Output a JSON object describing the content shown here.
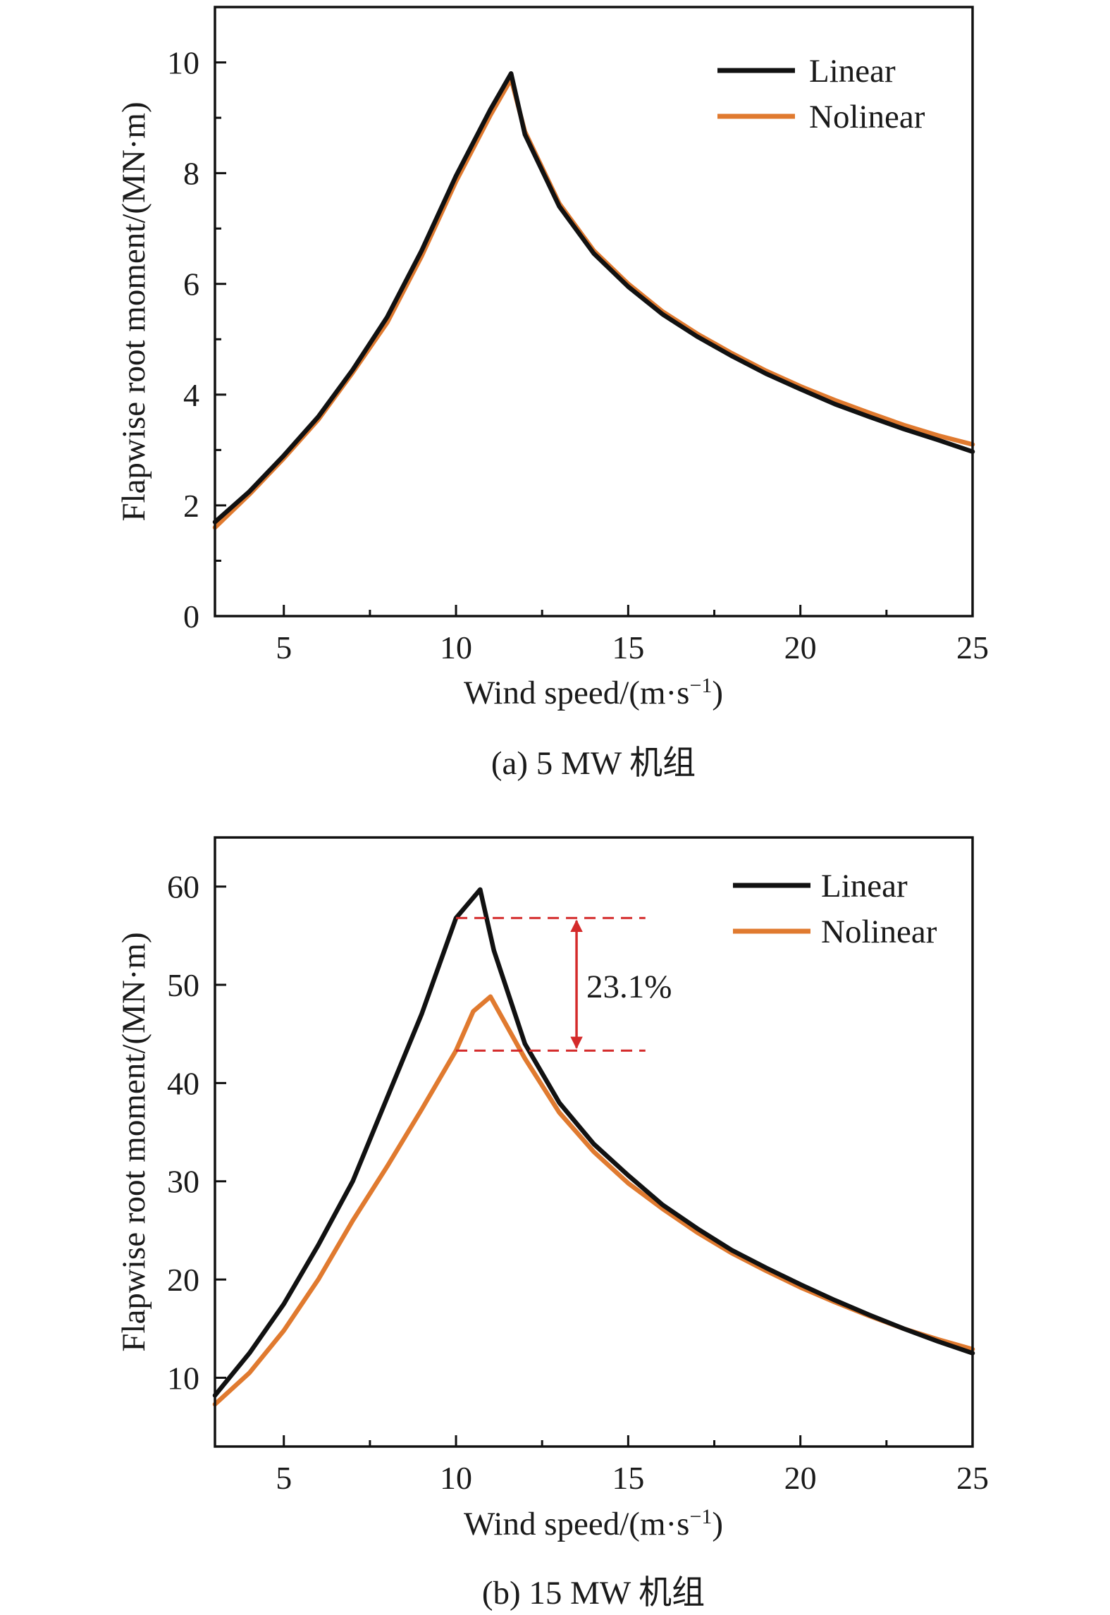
{
  "colors": {
    "linear": "#111111",
    "nolinear": "#e07a2f",
    "annotation": "#d42a2a",
    "axis": "#111111"
  },
  "chart_data": [
    {
      "type": "line",
      "id": "a",
      "caption": "(a) 5 MW 机组",
      "xlabel": "Wind speed/(m·s",
      "xlabel_sup": "−1",
      "xlabel_tail": ")",
      "ylabel": "Flapwise root moment/(MN·m)",
      "xlim": [
        3,
        25
      ],
      "ylim": [
        0,
        11
      ],
      "xticks": [
        5,
        10,
        15,
        20,
        25
      ],
      "yticks": [
        0,
        2,
        4,
        6,
        8,
        10
      ],
      "grid": false,
      "legend_position": "top-right",
      "series": [
        {
          "name": "Linear",
          "color_key": "linear",
          "x": [
            3,
            4,
            5,
            6,
            7,
            8,
            9,
            10,
            11,
            11.6,
            12,
            13,
            14,
            15,
            16,
            17,
            18,
            19,
            20,
            21,
            22,
            23,
            24,
            25
          ],
          "y": [
            1.7,
            2.25,
            2.9,
            3.6,
            4.45,
            5.4,
            6.6,
            7.95,
            9.15,
            9.8,
            8.7,
            7.4,
            6.55,
            5.95,
            5.45,
            5.05,
            4.7,
            4.38,
            4.1,
            3.83,
            3.6,
            3.38,
            3.18,
            2.97
          ]
        },
        {
          "name": "Nolinear",
          "color_key": "nolinear",
          "x": [
            3,
            4,
            5,
            6,
            7,
            8,
            9,
            10,
            11,
            11.6,
            12,
            13,
            14,
            15,
            16,
            17,
            18,
            19,
            20,
            21,
            22,
            23,
            24,
            25
          ],
          "y": [
            1.6,
            2.2,
            2.85,
            3.55,
            4.4,
            5.3,
            6.5,
            7.85,
            9.05,
            9.7,
            8.75,
            7.45,
            6.6,
            6.0,
            5.5,
            5.1,
            4.75,
            4.43,
            4.15,
            3.9,
            3.67,
            3.45,
            3.26,
            3.1
          ]
        }
      ]
    },
    {
      "type": "line",
      "id": "b",
      "caption": "(b) 15 MW 机组",
      "xlabel": "Wind speed/(m·s",
      "xlabel_sup": "−1",
      "xlabel_tail": ")",
      "ylabel": "Flapwise root moment/(MN·m)",
      "xlim": [
        3,
        25
      ],
      "ylim": [
        3,
        65
      ],
      "xticks": [
        5,
        10,
        15,
        20,
        25
      ],
      "yticks": [
        10,
        20,
        30,
        40,
        50,
        60
      ],
      "grid": false,
      "legend_position": "top-right",
      "annotation": {
        "label": "23.1%",
        "upper_value": 56.8,
        "lower_value": 43.3,
        "x_start": 10,
        "x_end": 15.5,
        "arrow_x": 13.5
      },
      "series": [
        {
          "name": "Linear",
          "color_key": "linear",
          "x": [
            3,
            4,
            5,
            6,
            7,
            8,
            9,
            10,
            10.7,
            11.1,
            12,
            13,
            14,
            15,
            16,
            17,
            18,
            19,
            20,
            21,
            22,
            23,
            24,
            25
          ],
          "y": [
            8.2,
            12.5,
            17.5,
            23.5,
            30.0,
            38.5,
            47.0,
            56.8,
            59.7,
            53.5,
            44.0,
            38.0,
            33.8,
            30.6,
            27.6,
            25.2,
            23.0,
            21.2,
            19.5,
            17.9,
            16.4,
            15.0,
            13.7,
            12.5
          ]
        },
        {
          "name": "Nolinear",
          "color_key": "nolinear",
          "x": [
            3,
            4,
            5,
            6,
            7,
            8,
            9,
            10,
            10.5,
            11,
            12,
            13,
            14,
            15,
            16,
            17,
            18,
            19,
            20,
            21,
            22,
            23,
            24,
            25
          ],
          "y": [
            7.3,
            10.5,
            14.8,
            20.0,
            26.0,
            31.5,
            37.3,
            43.3,
            47.3,
            48.8,
            42.5,
            37.0,
            33.0,
            29.8,
            27.2,
            24.8,
            22.7,
            20.9,
            19.2,
            17.7,
            16.3,
            15.0,
            13.9,
            12.9
          ]
        }
      ]
    }
  ]
}
